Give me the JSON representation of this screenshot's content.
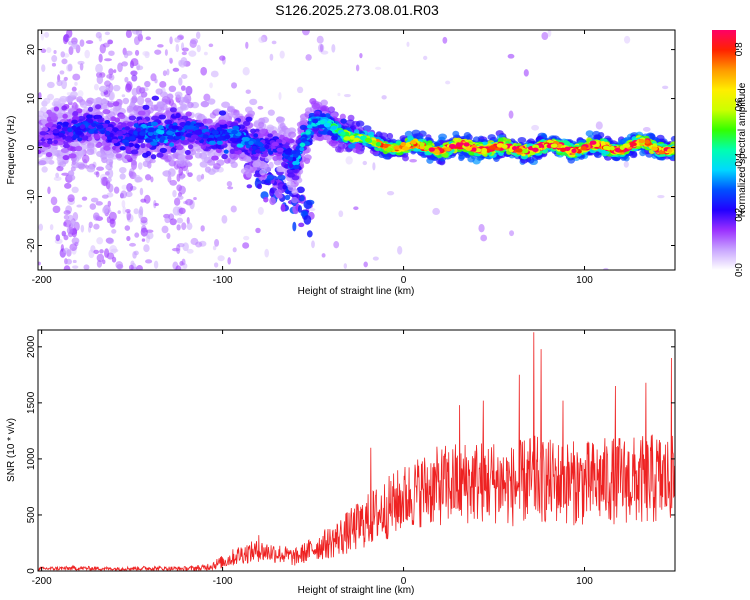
{
  "figure_title": "S126.2025.273.08.01.R03",
  "chart_data": [
    {
      "type": "heatmap",
      "name": "spectrogram",
      "xlabel": "Height of straight line (km)",
      "ylabel": "Frequency (Hz)",
      "xlim": [
        -202,
        150
      ],
      "ylim": [
        -25,
        24
      ],
      "x_ticks": [
        -200,
        -100,
        0,
        100
      ],
      "y_ticks": [
        -20,
        -10,
        0,
        10,
        20
      ],
      "colorbar": {
        "label": "Normalized spectral amplitude",
        "range": [
          0,
          0.87
        ],
        "ticks": [
          0.0,
          0.2,
          0.4,
          0.6,
          0.8
        ],
        "tick_labels": [
          "0.0",
          "0.2",
          "0.4",
          "0.6",
          "0.8"
        ],
        "stops": [
          "#ffffff",
          "#c9a6ff",
          "#9b30ff",
          "#2200ff",
          "#0050ff",
          "#00d8ff",
          "#00ffb0",
          "#33ff00",
          "#ccff00",
          "#ffee00",
          "#ff9900",
          "#ff2200",
          "#ff0066"
        ]
      },
      "ridge": {
        "x": [
          -202,
          -190,
          -180,
          -170,
          -160,
          -150,
          -140,
          -130,
          -120,
          -110,
          -100,
          -90,
          -80,
          -70,
          -60,
          -55,
          -50,
          -45,
          -40,
          -35,
          -30,
          -25,
          -20,
          -15,
          -10,
          -5,
          0,
          10,
          20,
          30,
          40,
          50,
          60,
          70,
          80,
          90,
          100,
          110,
          120,
          130,
          140,
          150
        ],
        "freq_hz": [
          1.5,
          3,
          4,
          4,
          3,
          2.5,
          3,
          3.5,
          3,
          3,
          2.5,
          2,
          1,
          0,
          -3,
          2,
          5,
          4.5,
          4,
          3.5,
          3,
          2,
          1,
          0.5,
          0.5,
          0.3,
          0,
          0,
          0,
          0,
          0,
          0,
          -0.5,
          0,
          0,
          0,
          0,
          0,
          0,
          0.5,
          0,
          0
        ],
        "amplitude": [
          0.15,
          0.2,
          0.25,
          0.25,
          0.2,
          0.25,
          0.3,
          0.3,
          0.25,
          0.25,
          0.3,
          0.3,
          0.25,
          0.2,
          0.3,
          0.35,
          0.35,
          0.35,
          0.4,
          0.45,
          0.5,
          0.55,
          0.6,
          0.65,
          0.7,
          0.72,
          0.72,
          0.75,
          0.78,
          0.8,
          0.8,
          0.8,
          0.75,
          0.8,
          0.82,
          0.82,
          0.82,
          0.8,
          0.8,
          0.78,
          0.78,
          0.75
        ],
        "spread_hz": [
          6,
          6,
          6,
          6,
          6,
          6,
          6,
          6,
          5,
          5,
          5,
          5,
          5,
          4,
          5,
          4,
          3.5,
          3,
          3,
          2.5,
          2.5,
          2,
          1.5,
          1.5,
          1.5,
          1.5,
          1.5,
          1.5,
          1.5,
          1.5,
          1.5,
          1.5,
          1.5,
          1.5,
          1.5,
          1.5,
          1.5,
          1.5,
          1.5,
          1.5,
          1.5,
          1.5
        ]
      }
    },
    {
      "type": "line",
      "name": "snr",
      "xlabel": "Height of straight line (km)",
      "ylabel": "SNR (10 * v/v)",
      "xlim": [
        -202,
        150
      ],
      "ylim": [
        0,
        2150
      ],
      "x_ticks": [
        -200,
        -100,
        0,
        100
      ],
      "y_ticks": [
        0,
        500,
        1000,
        1500,
        2000
      ],
      "series": [
        {
          "name": "SNR",
          "color": "#ee2222",
          "envelope_x": [
            -202,
            -180,
            -160,
            -140,
            -120,
            -110,
            -100,
            -90,
            -80,
            -70,
            -60,
            -50,
            -40,
            -30,
            -20,
            -10,
            0,
            10,
            20,
            30,
            40,
            50,
            60,
            70,
            80,
            90,
            100,
            110,
            120,
            130,
            140,
            150
          ],
          "envelope_mean": [
            20,
            25,
            20,
            25,
            20,
            30,
            80,
            150,
            180,
            160,
            120,
            200,
            260,
            350,
            450,
            550,
            650,
            720,
            760,
            780,
            800,
            800,
            760,
            820,
            800,
            790,
            780,
            800,
            820,
            800,
            820,
            800
          ],
          "envelope_amp": [
            15,
            20,
            15,
            20,
            20,
            30,
            60,
            90,
            100,
            90,
            80,
            110,
            150,
            200,
            240,
            280,
            300,
            330,
            360,
            380,
            380,
            380,
            370,
            400,
            380,
            380,
            380,
            390,
            400,
            400,
            420,
            400
          ],
          "peaks": [
            [
              72,
              2130
            ],
            [
              76,
              1980
            ],
            [
              148,
              1900
            ],
            [
              64,
              1750
            ],
            [
              117,
              1650
            ],
            [
              134,
              1680
            ],
            [
              31,
              1480
            ],
            [
              44,
              1520
            ],
            [
              88,
              1520
            ],
            [
              -18,
              1100
            ],
            [
              -80,
              320
            ]
          ]
        }
      ]
    }
  ]
}
